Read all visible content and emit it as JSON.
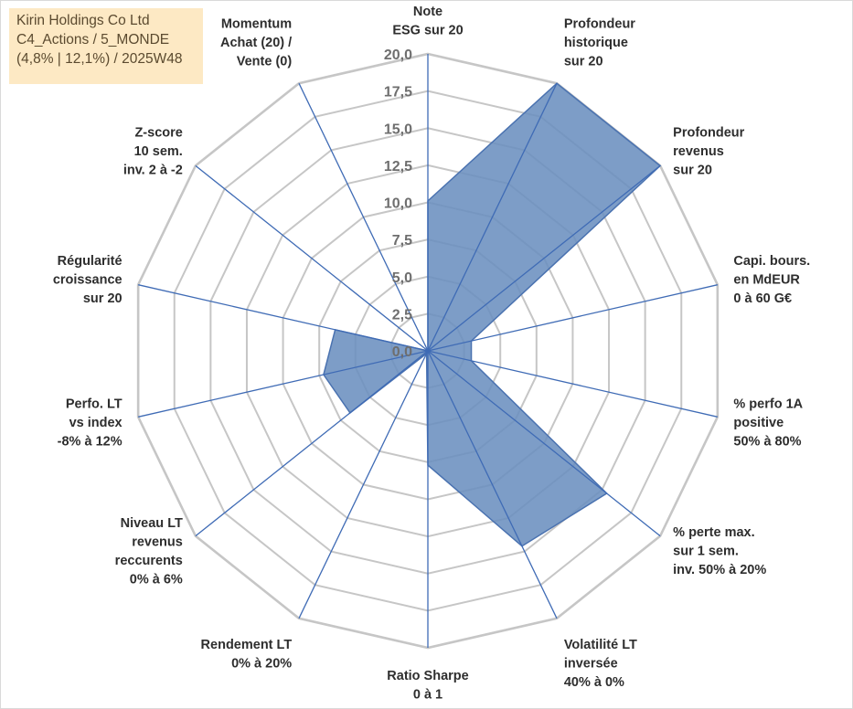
{
  "info_box": {
    "line1": "Kirin Holdings Co Ltd",
    "line2": "C4_Actions / 5_MONDE",
    "line3": "(4,8% | 12,1%) / 2025W48"
  },
  "colors": {
    "fill": "#6b8fbf",
    "stroke": "#4a72b0",
    "spoke": "#3f6bb5",
    "grid": "#c6c6c6"
  },
  "chart_data": {
    "type": "radar",
    "ylim": [
      0,
      20
    ],
    "ticks": [
      "0,0",
      "2,5",
      "5,0",
      "7,5",
      "10,0",
      "12,5",
      "15,0",
      "17,5",
      "20,0"
    ],
    "grid": true,
    "categories": [
      [
        "Note",
        "ESG sur 20"
      ],
      [
        "Profondeur",
        "historique",
        "sur 20"
      ],
      [
        "Profondeur",
        "revenus",
        "sur 20"
      ],
      [
        "Capi. bours.",
        "en MdEUR",
        "0 à 60 G€"
      ],
      [
        "% perfo 1A",
        "positive",
        "50% à 80%"
      ],
      [
        "% perte max.",
        "sur 1 sem.",
        "inv. 50% à 20%"
      ],
      [
        "Volatilité LT",
        "inversée",
        "40% à 0%"
      ],
      [
        "Ratio Sharpe",
        "0 à 1"
      ],
      [
        "Rendement LT",
        "0% à 20%"
      ],
      [
        "Niveau LT",
        "revenus",
        "reccurents",
        "0% à 6%"
      ],
      [
        "Perfo. LT",
        "vs index",
        "-8% à 12%"
      ],
      [
        "Régularité",
        "croissance",
        "sur 20"
      ],
      [
        "Z-score",
        "10 sem.",
        "inv. 2 à -2"
      ],
      [
        "Momentum",
        "Achat (20) /",
        "Vente (0)"
      ]
    ],
    "series": [
      {
        "values": [
          10.1,
          20.0,
          20.0,
          3.0,
          3.0,
          15.4,
          14.6,
          7.7,
          0.2,
          6.7,
          7.2,
          6.4,
          0.0,
          0.0
        ]
      }
    ]
  }
}
